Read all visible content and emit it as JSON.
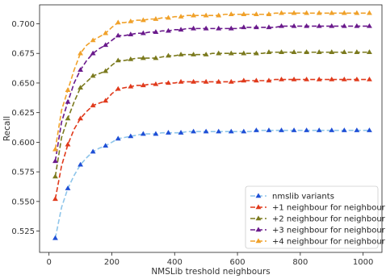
{
  "chart_data": {
    "type": "line",
    "xlabel": "NMSLib treshold neighbours",
    "ylabel": "Recall",
    "xlim": [
      -30,
      1060
    ],
    "ylim": [
      0.507,
      0.716
    ],
    "xticks": [
      0,
      200,
      400,
      600,
      800,
      1000
    ],
    "yticks": [
      0.525,
      0.55,
      0.575,
      0.6,
      0.625,
      0.65,
      0.675,
      0.7
    ],
    "x": [
      20,
      40,
      60,
      80,
      100,
      120,
      140,
      160,
      180,
      200,
      220,
      240,
      260,
      280,
      300,
      320,
      340,
      360,
      380,
      400,
      420,
      440,
      460,
      480,
      500,
      520,
      540,
      560,
      580,
      600,
      620,
      640,
      660,
      680,
      700,
      720,
      740,
      760,
      780,
      800,
      820,
      840,
      860,
      880,
      900,
      920,
      940,
      960,
      980,
      1000,
      1020
    ],
    "marker_x": [
      20,
      60,
      100,
      140,
      180,
      220,
      260,
      300,
      340,
      380,
      420,
      460,
      500,
      540,
      580,
      620,
      660,
      700,
      740,
      780,
      820,
      860,
      900,
      940,
      980,
      1020
    ],
    "legend_position": "lower-right",
    "grid": false,
    "series": [
      {
        "name": "nmslib variants",
        "color": "#1f4fd6",
        "line_color": "#8ec5ea",
        "values": [
          0.519,
          0.545,
          0.561,
          0.572,
          0.581,
          0.587,
          0.592,
          0.595,
          0.597,
          0.6,
          0.603,
          0.604,
          0.605,
          0.606,
          0.607,
          0.607,
          0.607,
          0.608,
          0.608,
          0.608,
          0.608,
          0.609,
          0.609,
          0.609,
          0.609,
          0.609,
          0.609,
          0.609,
          0.609,
          0.609,
          0.609,
          0.609,
          0.61,
          0.61,
          0.61,
          0.61,
          0.61,
          0.61,
          0.61,
          0.61,
          0.61,
          0.61,
          0.61,
          0.61,
          0.61,
          0.61,
          0.61,
          0.61,
          0.61,
          0.61,
          0.61
        ]
      },
      {
        "name": "+1 neighbour for neighbour",
        "color": "#e03a1c",
        "line_color": "#e03a1c",
        "values": [
          0.552,
          0.58,
          0.598,
          0.611,
          0.62,
          0.626,
          0.631,
          0.633,
          0.635,
          0.641,
          0.645,
          0.646,
          0.647,
          0.648,
          0.648,
          0.649,
          0.649,
          0.65,
          0.65,
          0.65,
          0.651,
          0.651,
          0.651,
          0.651,
          0.651,
          0.651,
          0.651,
          0.651,
          0.651,
          0.651,
          0.652,
          0.652,
          0.652,
          0.652,
          0.652,
          0.653,
          0.653,
          0.653,
          0.653,
          0.653,
          0.653,
          0.653,
          0.653,
          0.653,
          0.653,
          0.653,
          0.653,
          0.653,
          0.653,
          0.653,
          0.653
        ]
      },
      {
        "name": "+2 neighbour for neighbour",
        "color": "#7b7a1e",
        "line_color": "#7b7a1e",
        "values": [
          0.571,
          0.604,
          0.62,
          0.634,
          0.646,
          0.651,
          0.656,
          0.658,
          0.66,
          0.665,
          0.669,
          0.669,
          0.67,
          0.671,
          0.671,
          0.671,
          0.671,
          0.672,
          0.673,
          0.673,
          0.674,
          0.674,
          0.674,
          0.674,
          0.674,
          0.675,
          0.675,
          0.675,
          0.675,
          0.675,
          0.675,
          0.675,
          0.675,
          0.675,
          0.676,
          0.676,
          0.676,
          0.676,
          0.676,
          0.676,
          0.676,
          0.676,
          0.676,
          0.676,
          0.676,
          0.676,
          0.676,
          0.676,
          0.676,
          0.676,
          0.676
        ]
      },
      {
        "name": "+3 neighbour for neighbour",
        "color": "#6a1a8c",
        "line_color": "#6a1a8c",
        "values": [
          0.584,
          0.617,
          0.634,
          0.65,
          0.661,
          0.669,
          0.675,
          0.679,
          0.682,
          0.686,
          0.69,
          0.69,
          0.691,
          0.692,
          0.692,
          0.693,
          0.693,
          0.694,
          0.694,
          0.695,
          0.695,
          0.696,
          0.696,
          0.696,
          0.696,
          0.696,
          0.696,
          0.696,
          0.696,
          0.696,
          0.697,
          0.697,
          0.697,
          0.697,
          0.697,
          0.697,
          0.698,
          0.698,
          0.698,
          0.698,
          0.698,
          0.698,
          0.698,
          0.698,
          0.698,
          0.698,
          0.698,
          0.698,
          0.698,
          0.698,
          0.698
        ]
      },
      {
        "name": "+4 neighbour for neighbour",
        "color": "#f0a12a",
        "line_color": "#f0a12a",
        "values": [
          0.594,
          0.627,
          0.644,
          0.661,
          0.675,
          0.682,
          0.686,
          0.689,
          0.692,
          0.697,
          0.701,
          0.701,
          0.702,
          0.703,
          0.703,
          0.704,
          0.704,
          0.705,
          0.705,
          0.706,
          0.706,
          0.707,
          0.707,
          0.707,
          0.707,
          0.707,
          0.707,
          0.708,
          0.708,
          0.708,
          0.708,
          0.708,
          0.708,
          0.708,
          0.708,
          0.709,
          0.709,
          0.709,
          0.709,
          0.709,
          0.709,
          0.709,
          0.709,
          0.709,
          0.709,
          0.709,
          0.709,
          0.709,
          0.709,
          0.709,
          0.709
        ]
      }
    ]
  }
}
